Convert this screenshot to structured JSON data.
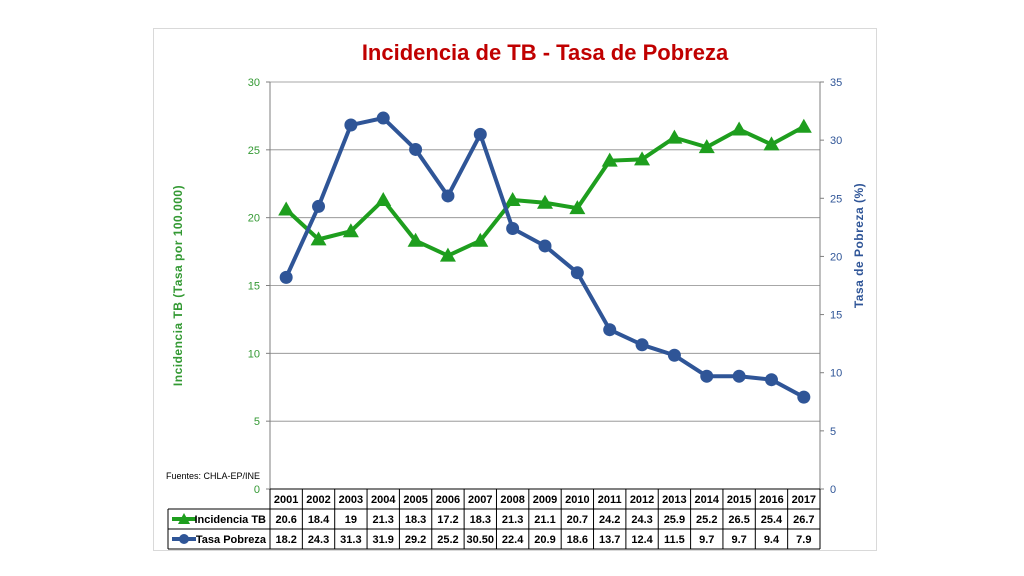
{
  "chart_data": {
    "type": "line",
    "title": "Incidencia de TB - Tasa de Pobreza",
    "categories": [
      "2001",
      "2002",
      "2003",
      "2004",
      "2005",
      "2006",
      "2007",
      "2008",
      "2009",
      "2010",
      "2011",
      "2012",
      "2013",
      "2014",
      "2015",
      "2016",
      "2017"
    ],
    "series": [
      {
        "name": "Incidencia TB",
        "axis": "left",
        "color": "#1e9e1e",
        "marker": "triangle",
        "values": [
          20.6,
          18.4,
          19,
          21.3,
          18.3,
          17.2,
          18.3,
          21.3,
          21.1,
          20.7,
          24.2,
          24.3,
          25.9,
          25.2,
          26.5,
          25.4,
          26.7
        ],
        "labels": [
          "20.6",
          "18.4",
          "19",
          "21.3",
          "18.3",
          "17.2",
          "18.3",
          "21.3",
          "21.1",
          "20.7",
          "24.2",
          "24.3",
          "25.9",
          "25.2",
          "26.5",
          "25.4",
          "26.7"
        ]
      },
      {
        "name": "Tasa Pobreza",
        "axis": "right",
        "color": "#2f5597",
        "marker": "circle",
        "values": [
          18.2,
          24.3,
          31.3,
          31.9,
          29.2,
          25.2,
          30.5,
          22.4,
          20.9,
          18.6,
          13.7,
          12.4,
          11.5,
          9.7,
          9.7,
          9.4,
          7.9
        ],
        "labels": [
          "18.2",
          "24.3",
          "31.3",
          "31.9",
          "29.2",
          "25.2",
          "30.50",
          "22.4",
          "20.9",
          "18.6",
          "13.7",
          "12.4",
          "11.5",
          "9.7",
          "9.7",
          "9.4",
          "7.9"
        ]
      }
    ],
    "ylabel_left": "Incidencia TB (Tasa por 100.000)",
    "ylabel_right": "Tasa de Pobreza (%)",
    "ylim_left": [
      0,
      30
    ],
    "yticks_left": [
      "0",
      "5",
      "10",
      "15",
      "20",
      "25",
      "30"
    ],
    "ylim_right": [
      0,
      35
    ],
    "yticks_right": [
      "0",
      "5",
      "10",
      "15",
      "20",
      "25",
      "30",
      "35"
    ],
    "grid": true,
    "legend": "data-table",
    "source_note": "Fuentes: CHLA-EP/INE"
  }
}
